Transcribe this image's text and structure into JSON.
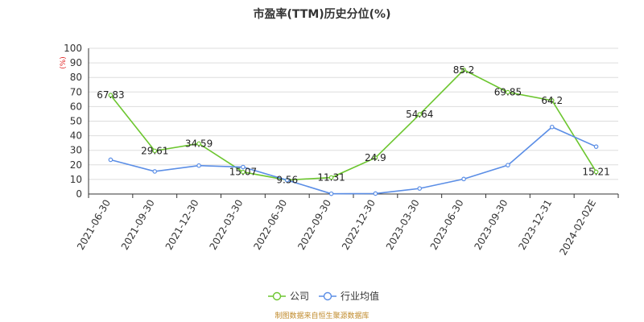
{
  "chart_data": {
    "type": "line",
    "title": "市盈率(TTM)历史分位(%)",
    "ylabel": "(%)",
    "ylim": [
      0,
      100
    ],
    "yticks": [
      0,
      10,
      20,
      30,
      40,
      50,
      60,
      70,
      80,
      90,
      100
    ],
    "categories": [
      "2021-06-30",
      "2021-09-30",
      "2021-12-30",
      "2022-03-30",
      "2022-06-30",
      "2022-09-30",
      "2022-12-30",
      "2023-03-30",
      "2023-06-30",
      "2023-09-30",
      "2023-12-31",
      "2024-02-02E"
    ],
    "grid": true,
    "legend_position": "bottom",
    "series": [
      {
        "name": "公司",
        "color": "#6cc62f",
        "values": [
          67.83,
          29.61,
          34.59,
          15.07,
          9.56,
          11.31,
          24.9,
          54.64,
          85.2,
          69.85,
          64.2,
          15.21
        ],
        "labels": [
          "67.83",
          "29.61",
          "34.59",
          "15.07",
          "9.56",
          "11.31",
          "24.9",
          "54.64",
          "85.2",
          "69.85",
          "64.2",
          "15.21"
        ]
      },
      {
        "name": "行业均值",
        "color": "#5b8ee6",
        "values": [
          23.5,
          15.5,
          19.5,
          18.5,
          9.5,
          0.2,
          0.3,
          3.8,
          10.3,
          19.8,
          46.0,
          32.5
        ]
      }
    ],
    "source": "制图数据来自恒生聚源数据库"
  }
}
